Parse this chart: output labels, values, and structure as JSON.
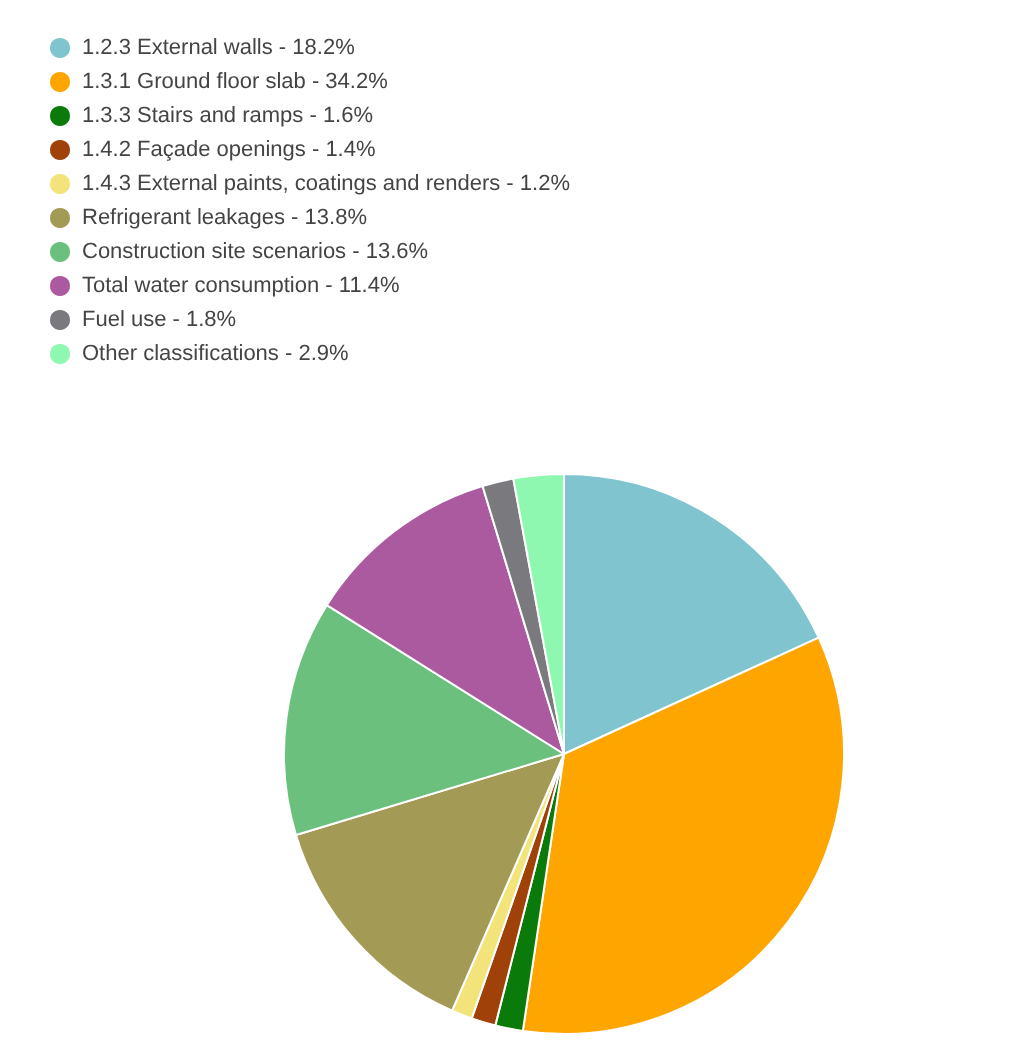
{
  "chart_data": {
    "type": "pie",
    "categories": [
      "1.2.3 External walls - 18.2%",
      "1.3.1 Ground floor slab - 34.2%",
      "1.3.3 Stairs and ramps - 1.6%",
      "1.4.2 Façade openings - 1.4%",
      "1.4.3 External paints, coatings and renders - 1.2%",
      "Refrigerant leakages - 13.8%",
      "Construction site scenarios - 13.6%",
      "Total water consumption - 11.4%",
      "Fuel use - 1.8%",
      "Other classifications - 2.9%"
    ],
    "values": [
      18.2,
      34.2,
      1.6,
      1.4,
      1.2,
      13.8,
      13.6,
      11.4,
      1.8,
      2.9
    ],
    "colors": [
      "#7fc4cf",
      "#ffa500",
      "#0a7a0a",
      "#a0410a",
      "#f2e47a",
      "#a39a55",
      "#6cc07e",
      "#ac5aa0",
      "#7a7a7e",
      "#8ef7b0"
    ],
    "legend": "top left"
  }
}
